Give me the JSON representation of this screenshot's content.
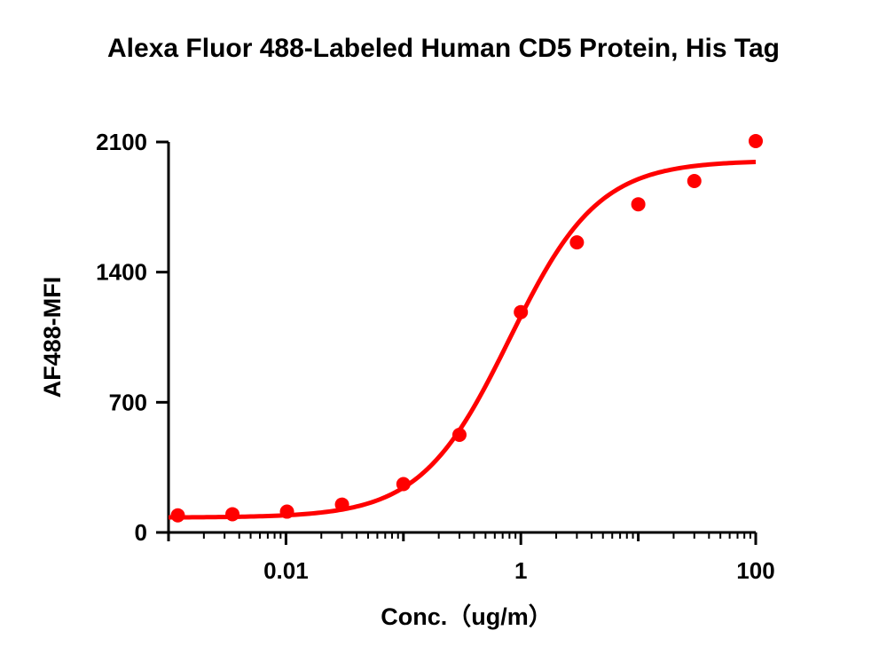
{
  "chart_data": {
    "type": "scatter",
    "title": "Alexa Fluor 488-Labeled Human CD5 Protein, His Tag",
    "xlabel": "Conc.（ug/m）",
    "ylabel": "AF488-MFI",
    "x_scale": "log",
    "xlim": [
      0.001,
      100
    ],
    "ylim": [
      0,
      2100
    ],
    "x_ticks": [
      0.01,
      1,
      100
    ],
    "x_tick_labels": [
      "0.01",
      "1",
      "100"
    ],
    "y_ticks": [
      0,
      700,
      1400,
      2100
    ],
    "y_tick_labels": [
      "0",
      "700",
      "1400",
      "2100"
    ],
    "series": [
      {
        "color": "#ff0000",
        "x": [
          0.0012,
          0.0035,
          0.0102,
          0.03,
          0.1,
          0.3,
          1.0,
          3.0,
          10.0,
          30.0,
          100.0
        ],
        "y": [
          92,
          98,
          112,
          150,
          260,
          525,
          1185,
          1560,
          1765,
          1890,
          2105
        ]
      }
    ],
    "fit_curve": {
      "color": "#ff0000",
      "bottom": 80,
      "top": 2000,
      "ec50": 0.8,
      "hill": 1.15
    },
    "grid": false,
    "legend": "none"
  }
}
